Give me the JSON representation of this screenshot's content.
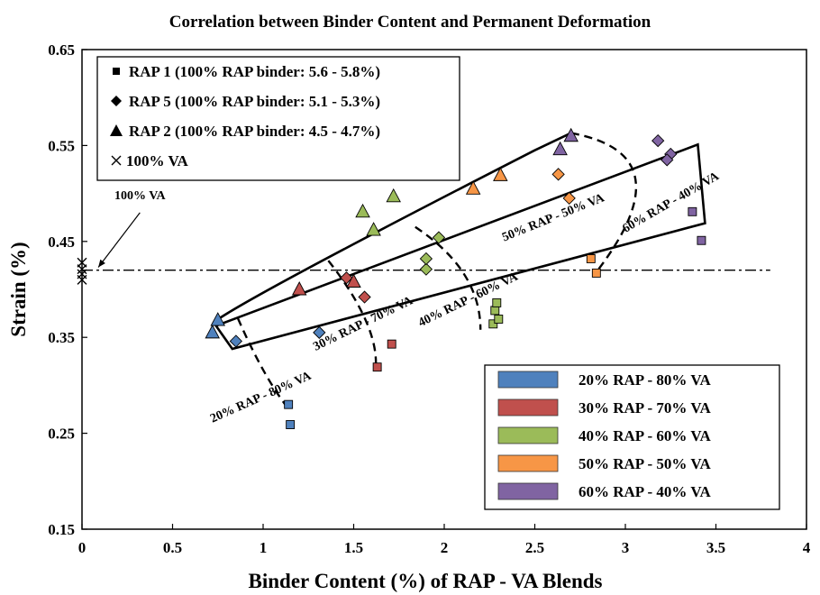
{
  "chart_data": {
    "type": "scatter",
    "title": "Correlation between Binder Content and Permanent Deformation",
    "xlabel": "Binder Content (%) of RAP - VA Blends",
    "ylabel": "Strain (%)",
    "xlim": [
      0,
      4
    ],
    "ylim": [
      0.15,
      0.65
    ],
    "x_ticks": [
      "0",
      "0.5",
      "1",
      "1.5",
      "2",
      "2.5",
      "3",
      "3.5",
      "4"
    ],
    "y_ticks": [
      "0.15",
      "0.25",
      "0.35",
      "0.45",
      "0.55",
      "0.65"
    ],
    "grid": false,
    "marker_legend": {
      "placement": "top-left",
      "entries": [
        {
          "marker": "square",
          "label": "RAP 1 (100% RAP binder: 5.6 - 5.8%)"
        },
        {
          "marker": "diamond",
          "label": "RAP 5 (100% RAP binder: 5.1 - 5.3%)"
        },
        {
          "marker": "triangle",
          "label": "RAP 2 (100% RAP binder: 4.5 - 4.7%)"
        },
        {
          "marker": "cross",
          "label": "100% VA"
        }
      ]
    },
    "color_legend": {
      "placement": "bottom-right",
      "entries": [
        {
          "label": "20% RAP - 80% VA",
          "color": "#4F81BD"
        },
        {
          "label": "30% RAP - 70% VA",
          "color": "#C0504D"
        },
        {
          "label": "40% RAP - 60% VA",
          "color": "#9BBB59"
        },
        {
          "label": "50% RAP - 50% VA",
          "color": "#F79646"
        },
        {
          "label": "60% RAP - 40% VA",
          "color": "#8064A2"
        }
      ]
    },
    "reference_line": {
      "y": 0.42,
      "style": "dash-dot",
      "label": "100% VA"
    },
    "series": [
      {
        "name": "20% RAP - 80% VA",
        "color": "#4F81BD",
        "points": [
          {
            "x": 1.14,
            "y": 0.28,
            "m": "square"
          },
          {
            "x": 1.15,
            "y": 0.259,
            "m": "square"
          },
          {
            "x": 0.85,
            "y": 0.346,
            "m": "diamond"
          },
          {
            "x": 1.31,
            "y": 0.355,
            "m": "diamond"
          },
          {
            "x": 0.72,
            "y": 0.355,
            "m": "triangle"
          },
          {
            "x": 0.75,
            "y": 0.368,
            "m": "triangle"
          }
        ]
      },
      {
        "name": "30% RAP - 70% VA",
        "color": "#C0504D",
        "points": [
          {
            "x": 1.63,
            "y": 0.319,
            "m": "square"
          },
          {
            "x": 1.71,
            "y": 0.343,
            "m": "square"
          },
          {
            "x": 1.56,
            "y": 0.392,
            "m": "diamond"
          },
          {
            "x": 1.46,
            "y": 0.412,
            "m": "diamond"
          },
          {
            "x": 1.2,
            "y": 0.4,
            "m": "triangle"
          },
          {
            "x": 1.5,
            "y": 0.408,
            "m": "triangle"
          }
        ]
      },
      {
        "name": "40% RAP - 60% VA",
        "color": "#9BBB59",
        "points": [
          {
            "x": 2.27,
            "y": 0.364,
            "m": "square"
          },
          {
            "x": 2.3,
            "y": 0.369,
            "m": "square"
          },
          {
            "x": 2.28,
            "y": 0.378,
            "m": "square"
          },
          {
            "x": 2.29,
            "y": 0.386,
            "m": "square"
          },
          {
            "x": 1.9,
            "y": 0.421,
            "m": "diamond"
          },
          {
            "x": 1.9,
            "y": 0.432,
            "m": "diamond"
          },
          {
            "x": 1.97,
            "y": 0.454,
            "m": "diamond"
          },
          {
            "x": 1.61,
            "y": 0.462,
            "m": "triangle"
          },
          {
            "x": 1.55,
            "y": 0.481,
            "m": "triangle"
          },
          {
            "x": 1.72,
            "y": 0.497,
            "m": "triangle"
          }
        ]
      },
      {
        "name": "50% RAP - 50% VA",
        "color": "#F79646",
        "points": [
          {
            "x": 2.84,
            "y": 0.417,
            "m": "square"
          },
          {
            "x": 2.81,
            "y": 0.432,
            "m": "square"
          },
          {
            "x": 2.69,
            "y": 0.495,
            "m": "diamond"
          },
          {
            "x": 2.63,
            "y": 0.52,
            "m": "diamond"
          },
          {
            "x": 2.16,
            "y": 0.505,
            "m": "triangle"
          },
          {
            "x": 2.31,
            "y": 0.519,
            "m": "triangle"
          }
        ]
      },
      {
        "name": "60% RAP - 40% VA",
        "color": "#8064A2",
        "points": [
          {
            "x": 3.42,
            "y": 0.451,
            "m": "square"
          },
          {
            "x": 3.37,
            "y": 0.481,
            "m": "square"
          },
          {
            "x": 3.18,
            "y": 0.555,
            "m": "diamond"
          },
          {
            "x": 3.25,
            "y": 0.541,
            "m": "diamond"
          },
          {
            "x": 3.23,
            "y": 0.535,
            "m": "diamond"
          },
          {
            "x": 2.64,
            "y": 0.546,
            "m": "triangle"
          },
          {
            "x": 2.7,
            "y": 0.56,
            "m": "triangle"
          }
        ]
      },
      {
        "name": "100% VA",
        "color": "#000000",
        "points": [
          {
            "x": 0.0,
            "y": 0.41,
            "m": "cross"
          },
          {
            "x": 0.0,
            "y": 0.416,
            "m": "cross"
          },
          {
            "x": 0.0,
            "y": 0.421,
            "m": "cross"
          },
          {
            "x": 0.0,
            "y": 0.428,
            "m": "cross"
          }
        ]
      }
    ],
    "envelope": [
      [
        0.74,
        0.362
      ],
      [
        0.83,
        0.338
      ],
      [
        3.44,
        0.469
      ],
      [
        3.4,
        0.551
      ],
      [
        0.76,
        0.37
      ],
      [
        1.02,
        0.402
      ],
      [
        2.5,
        0.545
      ],
      [
        2.7,
        0.563
      ],
      [
        3.34,
        0.541
      ],
      [
        1.13,
        0.278
      ],
      [
        2.84,
        0.418
      ]
    ],
    "region_labels": [
      {
        "text": "20% RAP - 80% VA",
        "x": 0.72,
        "y": 0.261,
        "angle": -24
      },
      {
        "text": "30% RAP - 70% VA",
        "x": 1.29,
        "y": 0.336,
        "angle": -26
      },
      {
        "text": "40% RAP - 60% VA",
        "x": 1.87,
        "y": 0.361,
        "angle": -26
      },
      {
        "text": "50% RAP - 50% VA",
        "x": 2.33,
        "y": 0.45,
        "angle": -22
      },
      {
        "text": "60% RAP - 40% VA",
        "x": 3.0,
        "y": 0.459,
        "angle": -30
      }
    ],
    "annotations": [
      {
        "text": "100% VA",
        "x": 0.32,
        "y": 0.494
      }
    ]
  }
}
